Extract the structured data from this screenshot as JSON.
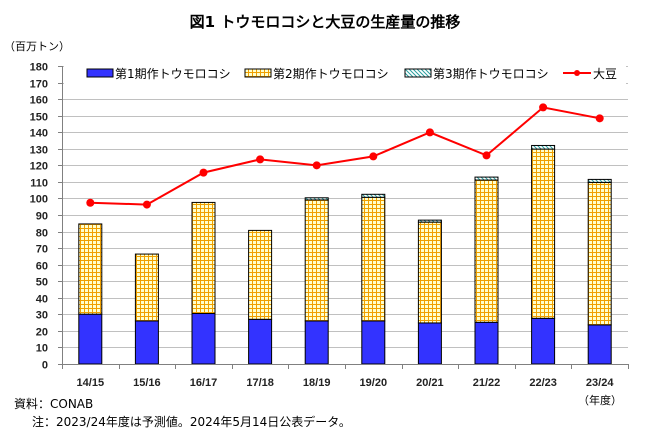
{
  "chart_data": {
    "type": "bar",
    "subtype": "stacked-bar-with-line",
    "title": "図1 トウモロコシと大豆の生産量の推移",
    "ylabel": "（百万トン）",
    "xlabel": "（年度）",
    "ylim": [
      0,
      180
    ],
    "ytick_step": 10,
    "grid": true,
    "legend_position": "top",
    "categories": [
      "14/15",
      "15/16",
      "16/17",
      "17/18",
      "18/19",
      "19/20",
      "20/21",
      "21/22",
      "22/23",
      "23/24"
    ],
    "series": [
      {
        "name": "第1期作トウモロコシ",
        "kind": "bar",
        "color": "#3333ff",
        "pattern": "solid",
        "values": [
          30.1,
          26.0,
          30.5,
          27.0,
          26.0,
          26.0,
          24.8,
          25.2,
          27.6,
          23.6
        ]
      },
      {
        "name": "第2期作トウモロコシ",
        "kind": "bar",
        "color": "#f0a000",
        "pattern": "grid",
        "values": [
          54.5,
          40.4,
          67.1,
          53.7,
          73.1,
          74.7,
          60.9,
          85.9,
          102.2,
          86.1
        ]
      },
      {
        "name": "第3期作トウモロコシ",
        "kind": "bar",
        "color": "#2aa0a0",
        "pattern": "diagonal",
        "values": [
          0.0,
          0.0,
          0.0,
          0.0,
          1.3,
          1.8,
          1.2,
          1.8,
          2.2,
          1.8
        ]
      },
      {
        "name": "大豆",
        "kind": "line",
        "color": "#ff0000",
        "values": [
          97.4,
          96.3,
          115.6,
          123.6,
          120.0,
          125.4,
          139.9,
          126.0,
          155.0,
          148.4
        ]
      }
    ]
  },
  "notes": {
    "source": "資料：CONAB",
    "note": "注：2023/24年度は予測値。2024年5月14日公表データ。"
  }
}
